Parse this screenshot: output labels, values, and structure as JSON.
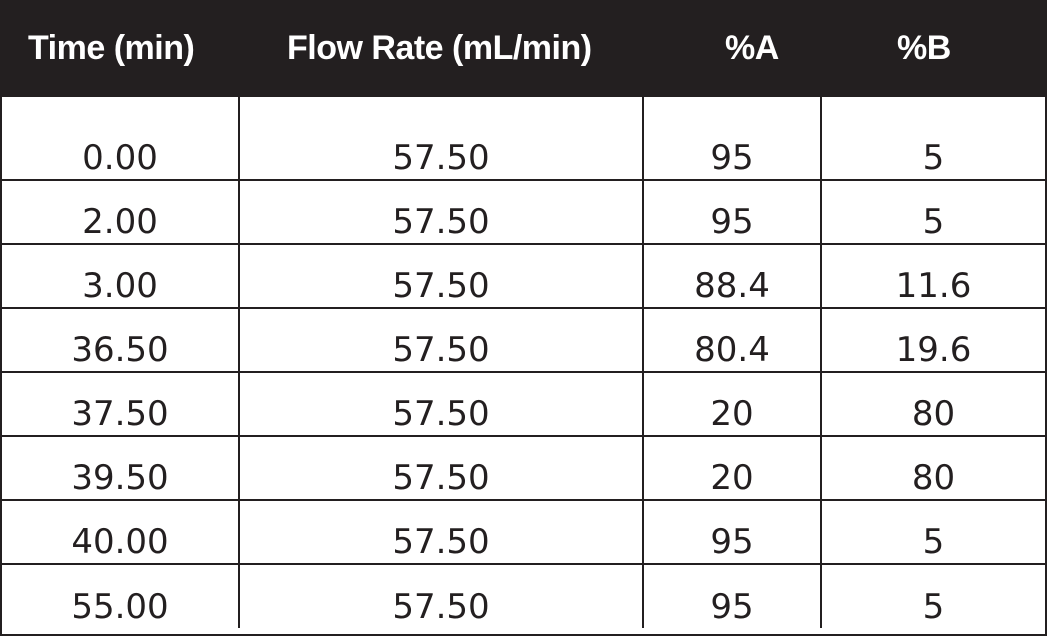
{
  "table": {
    "headers": [
      "Time (min)",
      "Flow Rate (mL/min)",
      "%A",
      "%B"
    ],
    "rows": [
      [
        "0.00",
        "57.50",
        "95",
        "5"
      ],
      [
        "2.00",
        "57.50",
        "95",
        "5"
      ],
      [
        "3.00",
        "57.50",
        "88.4",
        "11.6"
      ],
      [
        "36.50",
        "57.50",
        "80.4",
        "19.6"
      ],
      [
        "37.50",
        "57.50",
        "20",
        "80"
      ],
      [
        "39.50",
        "57.50",
        "20",
        "80"
      ],
      [
        "40.00",
        "57.50",
        "95",
        "5"
      ],
      [
        "55.00",
        "57.50",
        "95",
        "5"
      ]
    ]
  },
  "colors": {
    "header_background": "#231f20",
    "header_text": "#ffffff",
    "body_text": "#231f20",
    "grid_lines": "#231f20"
  }
}
